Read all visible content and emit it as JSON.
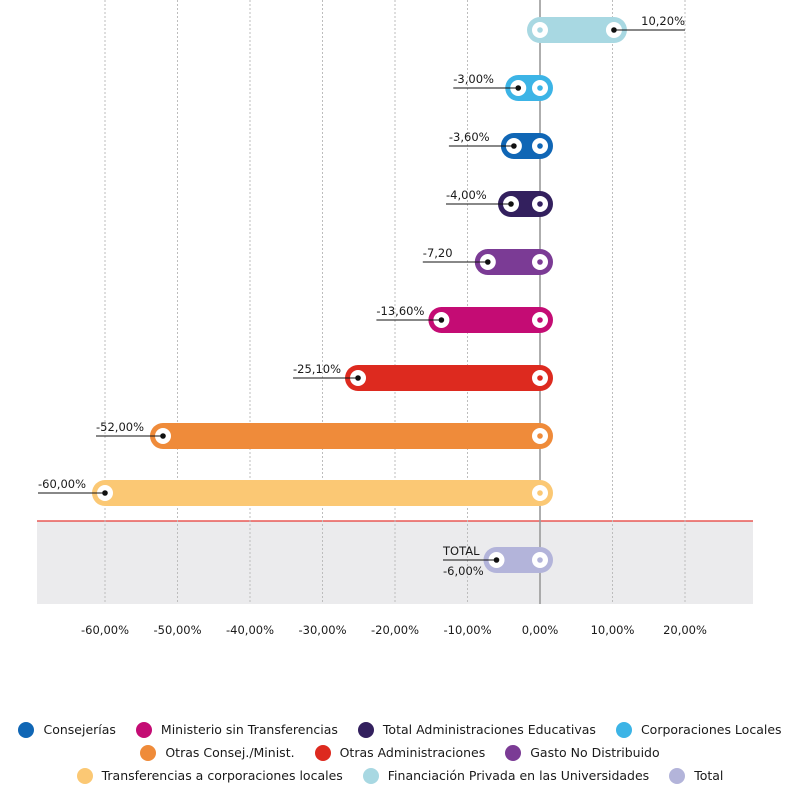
{
  "chart_data": {
    "type": "bar",
    "subtype": "dumbbell-horizontal",
    "title": "",
    "xlabel": "",
    "ylabel": "",
    "xlim": [
      -60,
      20
    ],
    "x_ticks": [
      -60,
      -50,
      -40,
      -30,
      -20,
      -10,
      0,
      10,
      20
    ],
    "x_tick_labels": [
      "-60,00%",
      "-50,00%",
      "-40,00%",
      "-30,00%",
      "-20,00%",
      "-10,00%",
      "0,00%",
      "10,00%",
      "20,00%"
    ],
    "grid": "vertical-dotted",
    "series": [
      {
        "name": "Financiación Privada en las Universidades",
        "value": 10.2,
        "label": "10,20%",
        "color": "#a8d8e2"
      },
      {
        "name": "Corporaciones Locales",
        "value": -3.0,
        "label": "-3,00%",
        "color": "#3cb4e6"
      },
      {
        "name": "Consejerías",
        "value": -3.6,
        "label": "-3,60%",
        "color": "#1066b5"
      },
      {
        "name": "Total Administraciones Educativas",
        "value": -4.0,
        "label": "-4,00%",
        "color": "#33205e"
      },
      {
        "name": "Gasto No Distribuido",
        "value": -7.2,
        "label": "-7,20",
        "color": "#7b3b95"
      },
      {
        "name": "Ministerio sin Transferencias",
        "value": -13.6,
        "label": "-13,60%",
        "color": "#c40c74"
      },
      {
        "name": "Otras Administraciones",
        "value": -25.1,
        "label": "-25,10%",
        "color": "#dd2a1f"
      },
      {
        "name": "Otras Consej./Minist.",
        "value": -52.0,
        "label": "-52,00%",
        "color": "#ef8b3a"
      },
      {
        "name": "Transferencias a corporaciones locales",
        "value": -60.0,
        "label": "-60,00%",
        "color": "#fbc874"
      }
    ],
    "total": {
      "name": "Total",
      "title": "TOTAL",
      "value": -6.0,
      "label": "-6,00%",
      "color": "#b3b4da"
    },
    "legend": {
      "placement": "bottom",
      "rows": [
        [
          {
            "label": "Consejerías",
            "color": "#1066b5"
          },
          {
            "label": "Ministerio sin Transferencias",
            "color": "#c40c74"
          },
          {
            "label": "Total Administraciones Educativas",
            "color": "#33205e"
          },
          {
            "label": "Corporaciones Locales",
            "color": "#3cb4e6"
          }
        ],
        [
          {
            "label": "Otras Consej./Minist.",
            "color": "#ef8b3a"
          },
          {
            "label": "Otras Administraciones",
            "color": "#dd2a1f"
          },
          {
            "label": "Gasto No Distribuido",
            "color": "#7b3b95"
          }
        ],
        [
          {
            "label": "Transferencias a corporaciones locales",
            "color": "#fbc874"
          },
          {
            "label": "Financiación Privada en las Universidades",
            "color": "#a8d8e2"
          },
          {
            "label": "Total",
            "color": "#b3b4da"
          }
        ]
      ]
    },
    "colors": {
      "separator": "#e53935",
      "total_band": "#ebebed",
      "zero_axis": "#9a9a9a",
      "gridline": "#bdbdbd"
    }
  }
}
